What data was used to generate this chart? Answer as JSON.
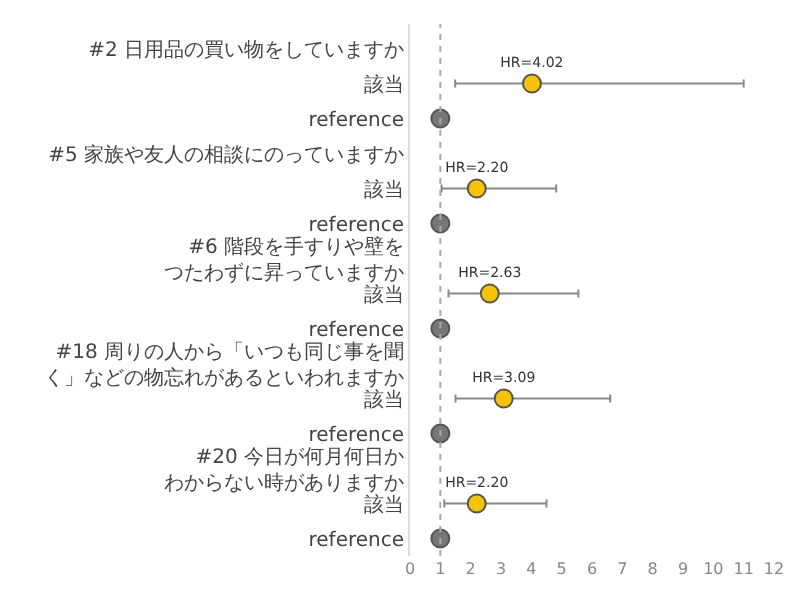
{
  "chart_data": {
    "type": "scatter",
    "orientation": "horizontal",
    "categories": [
      "#2 日用品の買い物をしていますか",
      "該当",
      "reference",
      "#5 家族や友人の相談にのっていますか",
      "該当",
      "reference",
      "#6 階段を手すりや壁をつたわずに昇っていますか",
      "該当",
      "reference",
      "#18 周りの人から「いつも同じ事を聞く」などの物忘れがあるといわれますか",
      "該当",
      "reference",
      "#20 今日が何月何日かわからない時がありますか",
      "該当",
      "reference"
    ],
    "series": [
      {
        "color": "#f5c400",
        "values": [
          null,
          4.02,
          null,
          null,
          2.2,
          null,
          null,
          2.63,
          null,
          null,
          3.09,
          null,
          null,
          2.2,
          null
        ],
        "errors": [
          null,
          [
            1.49,
            11.0
          ],
          null,
          null,
          [
            1.04,
            4.82
          ],
          null,
          null,
          [
            1.27,
            5.55
          ],
          null,
          null,
          [
            1.5,
            6.6
          ],
          null,
          null,
          [
            1.13,
            4.5
          ],
          null
        ],
        "value_labels": [
          null,
          "HR=4.02",
          null,
          null,
          "HR=2.20",
          null,
          null,
          "HR=2.63",
          null,
          null,
          "HR=3.09",
          null,
          null,
          "HR=2.20",
          null
        ]
      },
      {
        "color": "#777777",
        "values": [
          null,
          null,
          1,
          null,
          null,
          1,
          null,
          null,
          1,
          null,
          null,
          1,
          null,
          null,
          1
        ]
      }
    ],
    "xlim": [
      0,
      12
    ],
    "xticks": [
      0,
      1,
      2,
      3,
      4,
      5,
      6,
      7,
      8,
      9,
      10,
      11,
      12
    ],
    "ref_lines": [
      {
        "axis": "x",
        "value": 1,
        "line_style": "dotted",
        "color": "#aaaaaa"
      }
    ],
    "marker": "circle"
  }
}
